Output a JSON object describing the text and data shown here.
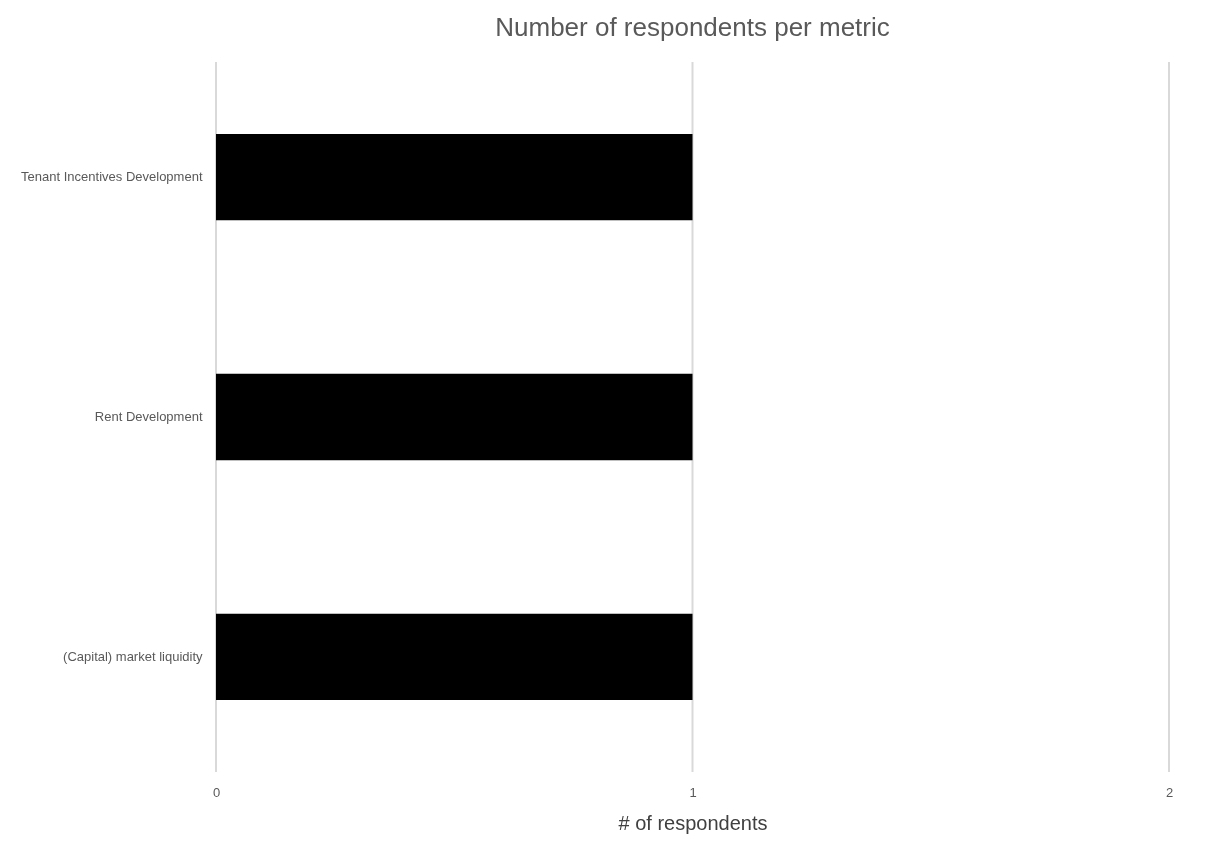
{
  "chart_data": {
    "type": "bar",
    "orientation": "horizontal",
    "title": "Number of respondents per metric",
    "xlabel": "# of respondents",
    "categories": [
      "Tenant Incentives Development",
      "Rent Development",
      "(Capital) market liquidity"
    ],
    "values": [
      1,
      1,
      1
    ],
    "color": "#000000",
    "xlim": [
      0,
      2
    ],
    "xticks": [
      0,
      1,
      2
    ],
    "grid": "x"
  }
}
